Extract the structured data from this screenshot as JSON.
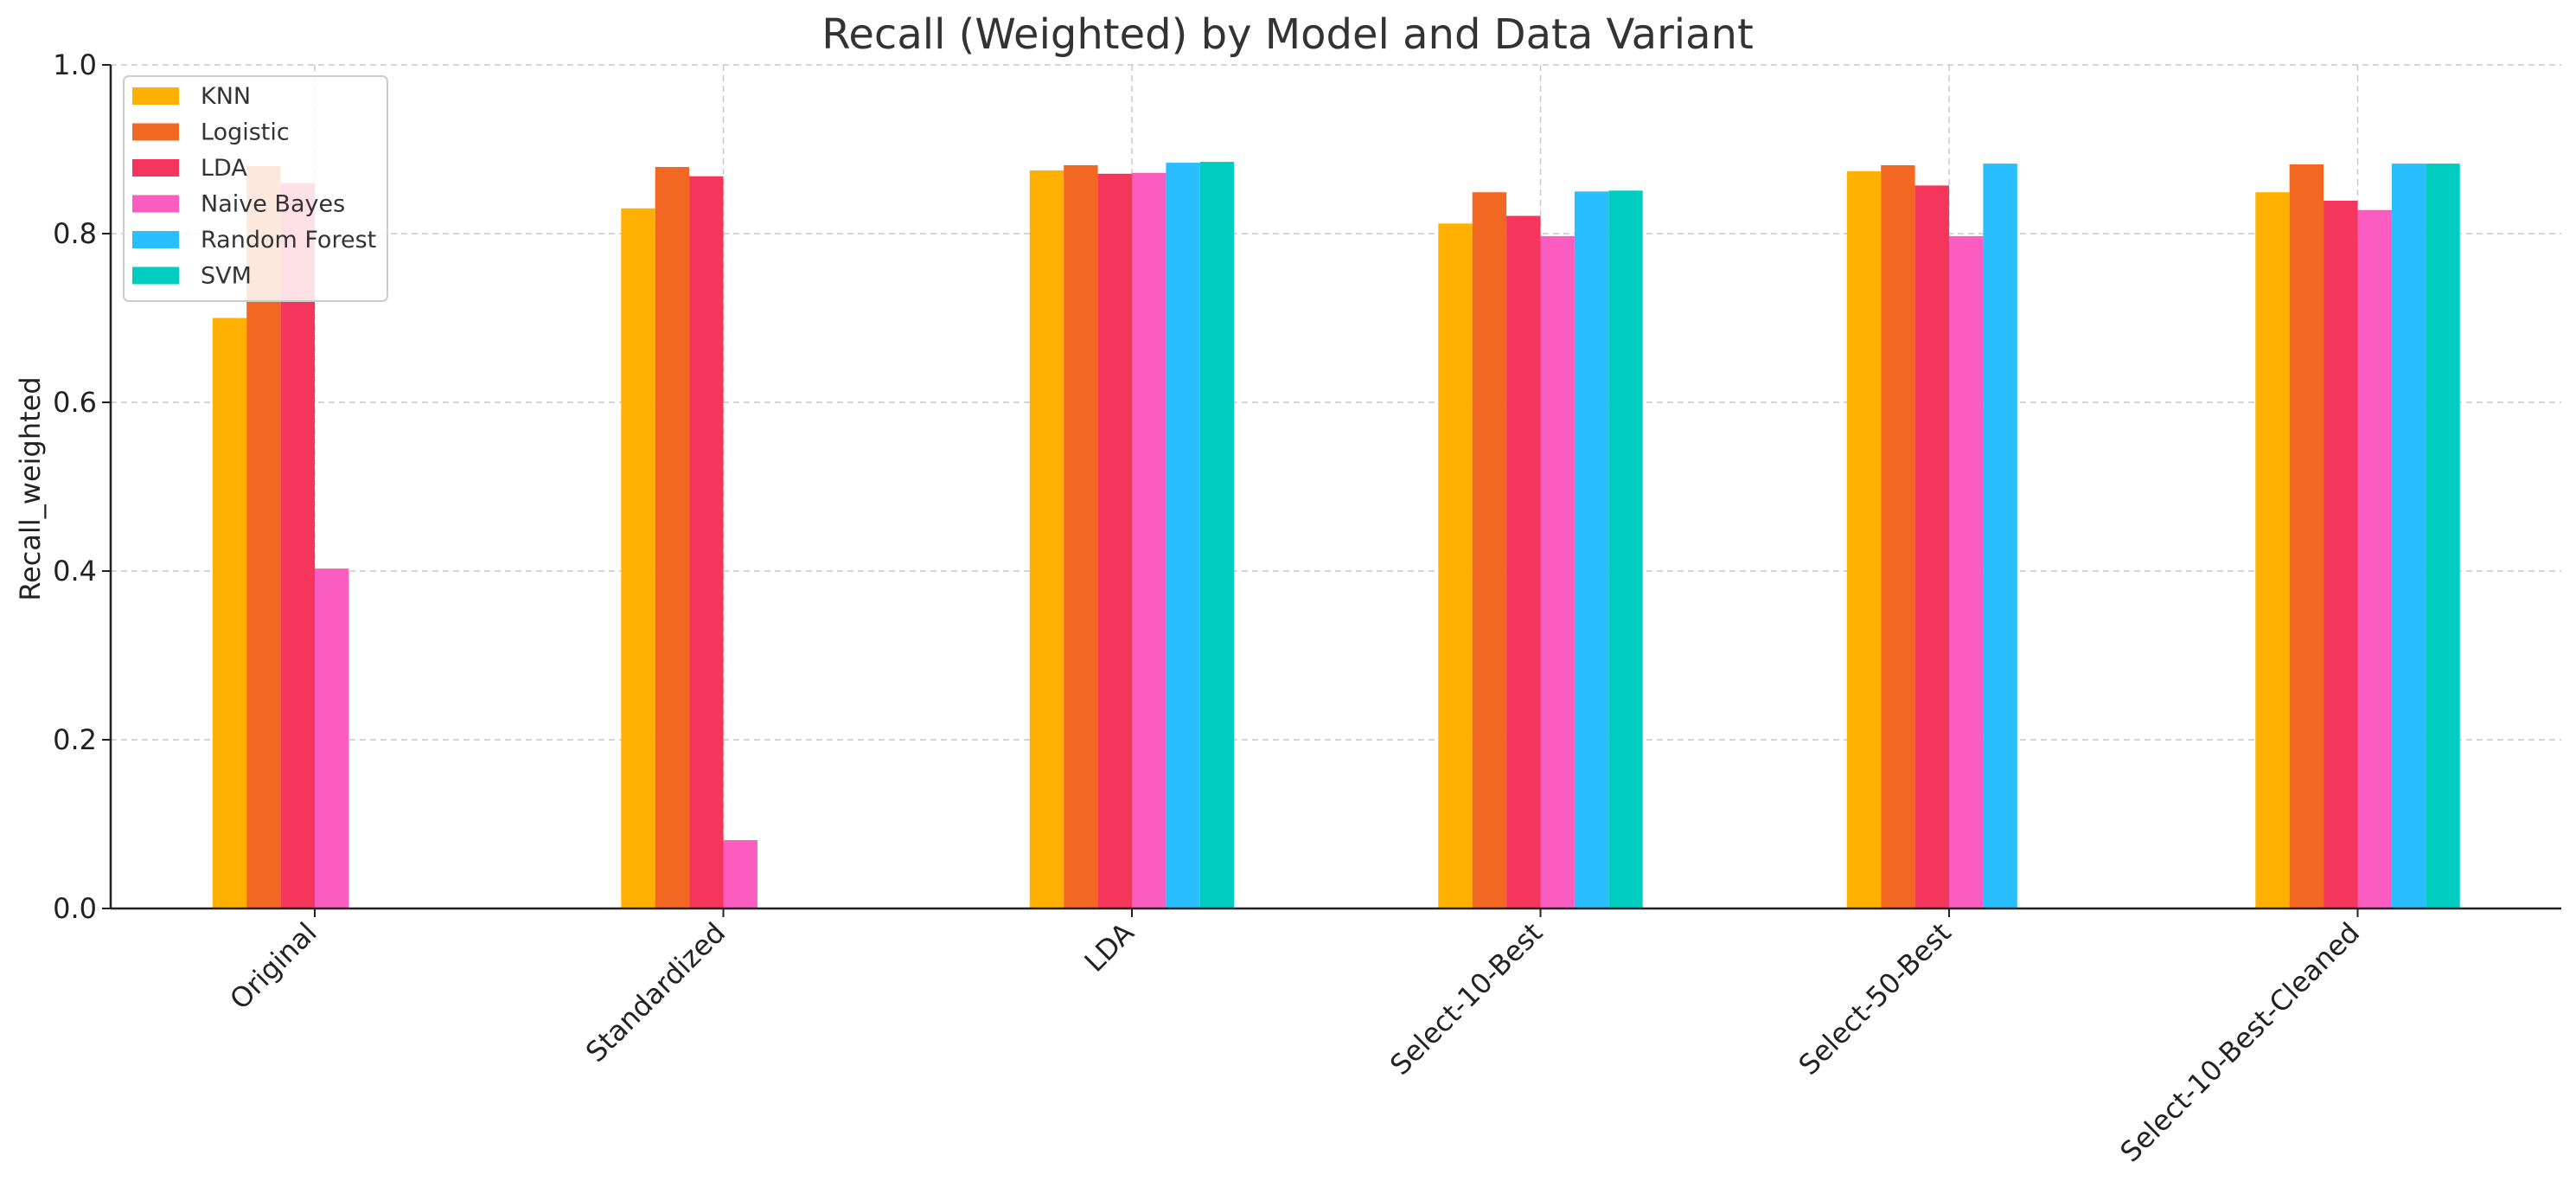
{
  "chart_data": {
    "type": "bar",
    "title": "Recall (Weighted) by Model and Data Variant",
    "xlabel": "",
    "ylabel": "Recall_weighted",
    "ylim": [
      0,
      1
    ],
    "yticks": [
      "0.0",
      "0.2",
      "0.4",
      "0.6",
      "0.8",
      "1.0"
    ],
    "grid": true,
    "legend_position": "top-left",
    "categories": [
      "Original",
      "Standardized",
      "LDA",
      "Select-10-Best",
      "Select-50-Best",
      "Select-10-Best-Cleaned"
    ],
    "series": [
      {
        "name": "KNN",
        "color": "#FFB000",
        "values": [
          0.7,
          0.83,
          0.875,
          0.812,
          0.874,
          0.849
        ]
      },
      {
        "name": "Logistic",
        "color": "#F26722",
        "values": [
          0.88,
          0.879,
          0.881,
          0.849,
          0.881,
          0.882
        ]
      },
      {
        "name": "LDA",
        "color": "#F5365C",
        "values": [
          0.86,
          0.868,
          0.871,
          0.821,
          0.857,
          0.839
        ]
      },
      {
        "name": "Naive Bayes",
        "color": "#FA5CC0",
        "values": [
          0.403,
          0.081,
          0.872,
          0.797,
          0.797,
          0.828
        ]
      },
      {
        "name": "Random Forest",
        "color": "#29BFFF",
        "values": [
          null,
          null,
          0.884,
          0.85,
          0.883,
          0.883
        ]
      },
      {
        "name": "SVM",
        "color": "#00CDC0",
        "values": [
          null,
          null,
          0.885,
          0.851,
          null,
          0.883
        ]
      }
    ]
  }
}
